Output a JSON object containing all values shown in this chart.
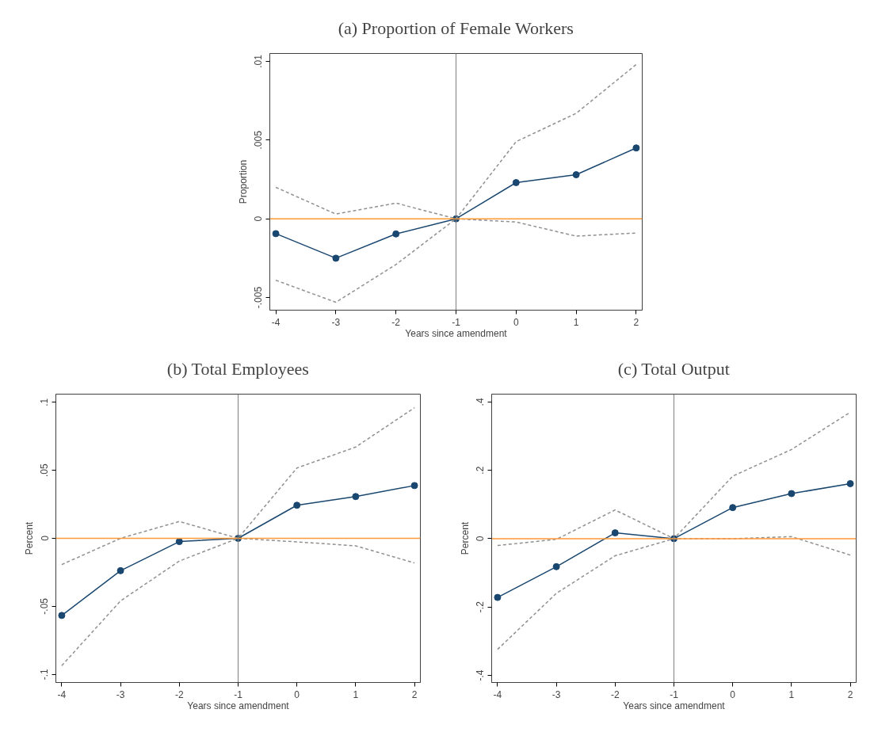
{
  "chart_data": [
    {
      "type": "line",
      "title": "(a) Proportion of Female Workers",
      "xlabel": "Years since amendment",
      "ylabel": "Proportion",
      "x": [
        -4,
        -3,
        -2,
        -1,
        0,
        1,
        2
      ],
      "series": [
        {
          "color": "#1a476f",
          "marker": "circle",
          "line_style": "solid",
          "values": [
            -0.00094,
            -0.0025,
            -0.00096,
            0,
            0.0023,
            0.0028,
            0.0045
          ]
        },
        {
          "color": "#909090",
          "marker": "none",
          "line_style": "dashed",
          "values": [
            0.002,
            0.0003,
            0.001,
            0,
            0.0049,
            0.0067,
            0.0098
          ]
        },
        {
          "color": "#909090",
          "marker": "none",
          "line_style": "dashed",
          "values": [
            -0.0039,
            -0.0053,
            -0.0029,
            0,
            -0.0002,
            -0.0011,
            -0.0009
          ]
        }
      ],
      "xlim": [
        -4.1,
        2.1
      ],
      "ylim": [
        -0.0058,
        0.0105
      ],
      "xticks": [
        -4,
        -3,
        -2,
        -1,
        0,
        1,
        2
      ],
      "yticks": [
        {
          "value": -0.005,
          "label": "-.005"
        },
        0,
        {
          "value": 0.005,
          "label": ".005"
        },
        {
          "value": 0.01,
          "label": ".01"
        }
      ],
      "ref_lines": [
        {
          "axis": "y",
          "value": 0,
          "color": "#ff9933"
        },
        {
          "axis": "x",
          "value": -1,
          "color": "#808080"
        }
      ],
      "grid": false
    },
    {
      "type": "line",
      "title": "(b) Total Employees",
      "xlabel": "Years since amendment",
      "ylabel": "Percent",
      "x": [
        -4,
        -3,
        -2,
        -1,
        0,
        1,
        2
      ],
      "series": [
        {
          "color": "#1a476f",
          "marker": "circle",
          "line_style": "solid",
          "values": [
            -0.0567,
            -0.0238,
            -0.0024,
            0,
            0.0243,
            0.0307,
            0.0388
          ]
        },
        {
          "color": "#909090",
          "marker": "none",
          "line_style": "dashed",
          "values": [
            -0.0193,
            0,
            0.0124,
            0,
            0.0517,
            0.0671,
            0.096
          ]
        },
        {
          "color": "#909090",
          "marker": "none",
          "line_style": "dashed",
          "values": [
            -0.0936,
            -0.046,
            -0.0167,
            0,
            -0.0026,
            -0.0055,
            -0.0181
          ]
        }
      ],
      "xlim": [
        -4.1,
        2.1
      ],
      "ylim": [
        -0.106,
        0.106
      ],
      "xticks": [
        -4,
        -3,
        -2,
        -1,
        0,
        1,
        2
      ],
      "yticks": [
        {
          "value": -0.1,
          "label": "-.1"
        },
        {
          "value": -0.05,
          "label": "-.05"
        },
        0,
        {
          "value": 0.05,
          "label": ".05"
        },
        {
          "value": 0.1,
          "label": ".1"
        }
      ],
      "ref_lines": [
        {
          "axis": "y",
          "value": 0,
          "color": "#ff9933"
        },
        {
          "axis": "x",
          "value": -1,
          "color": "#808080"
        }
      ],
      "grid": false
    },
    {
      "type": "line",
      "title": "(c) Total Output",
      "xlabel": "Years since amendment",
      "ylabel": "Percent",
      "x": [
        -4,
        -3,
        -2,
        -1,
        0,
        1,
        2
      ],
      "series": [
        {
          "color": "#1a476f",
          "marker": "circle",
          "line_style": "solid",
          "values": [
            -0.172,
            -0.082,
            0.017,
            0,
            0.091,
            0.132,
            0.161
          ]
        },
        {
          "color": "#909090",
          "marker": "none",
          "line_style": "dashed",
          "values": [
            -0.02,
            -0.002,
            0.084,
            0,
            0.183,
            0.261,
            0.37
          ]
        },
        {
          "color": "#909090",
          "marker": "none",
          "line_style": "dashed",
          "values": [
            -0.324,
            -0.16,
            -0.05,
            0,
            0,
            0.006,
            -0.048
          ]
        }
      ],
      "xlim": [
        -4.1,
        2.1
      ],
      "ylim": [
        -0.421,
        0.423
      ],
      "xticks": [
        -4,
        -3,
        -2,
        -1,
        0,
        1,
        2
      ],
      "yticks": [
        {
          "value": -0.4,
          "label": "-.4"
        },
        {
          "value": -0.2,
          "label": "-.2"
        },
        0,
        {
          "value": 0.2,
          "label": ".2"
        },
        {
          "value": 0.4,
          "label": ".4"
        }
      ],
      "ref_lines": [
        {
          "axis": "y",
          "value": 0,
          "color": "#ff9933"
        },
        {
          "axis": "x",
          "value": -1,
          "color": "#808080"
        }
      ],
      "grid": false
    }
  ]
}
